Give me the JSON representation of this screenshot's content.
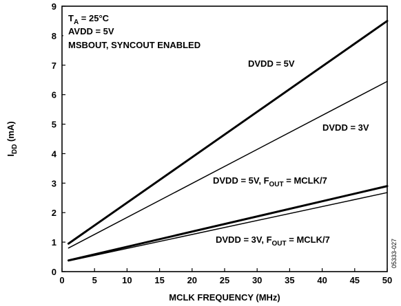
{
  "chart_data": {
    "type": "line",
    "xlabel": "MCLK FREQUENCY (MHz)",
    "ylabel": {
      "main": "I",
      "sub": "DD",
      "rest": " (mA)"
    },
    "xlim": [
      0,
      50
    ],
    "ylim": [
      0,
      9
    ],
    "xticks": [
      0,
      5,
      10,
      15,
      20,
      25,
      30,
      35,
      40,
      45,
      50
    ],
    "yticks": [
      0,
      1,
      2,
      3,
      4,
      5,
      6,
      7,
      8,
      9
    ],
    "grid": false,
    "conditions": {
      "line1": {
        "main": "T",
        "sub": "A",
        "rest": " = 25°C"
      },
      "line2": "AVDD = 5V",
      "line3": "MSBOUT, SYNCOUT ENABLED"
    },
    "series": [
      {
        "name": "DVDD = 5V",
        "label_parts": {
          "main": "DVDD = 5V"
        },
        "x": [
          1,
          50
        ],
        "y": [
          0.95,
          8.5
        ],
        "weight": "heavy"
      },
      {
        "name": "DVDD = 3V",
        "label_parts": {
          "main": "DVDD = 3V"
        },
        "x": [
          1,
          50
        ],
        "y": [
          0.8,
          6.45
        ],
        "weight": "light"
      },
      {
        "name": "DVDD = 5V, FOUT = MCLK/7",
        "label_parts": {
          "main": "DVDD = 5V, F",
          "sub": "OUT",
          "rest": " = MCLK/7"
        },
        "x": [
          1,
          50
        ],
        "y": [
          0.38,
          2.9
        ],
        "weight": "heavy"
      },
      {
        "name": "DVDD = 3V, FOUT = MCLK/7",
        "label_parts": {
          "main": "DVDD = 3V, F",
          "sub": "OUT",
          "rest": " = MCLK/7"
        },
        "x": [
          1,
          50
        ],
        "y": [
          0.36,
          2.68
        ],
        "weight": "light"
      }
    ],
    "figure_id": "05333-027"
  }
}
